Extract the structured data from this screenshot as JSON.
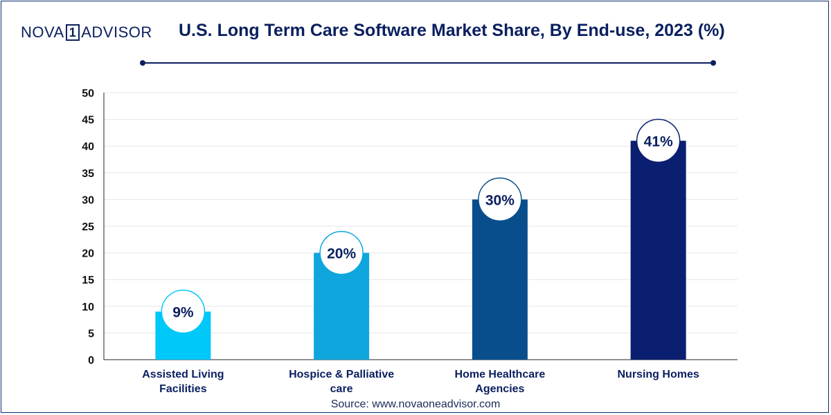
{
  "brand": {
    "left": "NOVA",
    "mid": "1",
    "right": "ADVISOR"
  },
  "source": "Source: www.novaoneadvisor.com",
  "chart_data": {
    "type": "bar",
    "title": "U.S. Long Term Care Software Market Share, By End-use, 2023 (%)",
    "xlabel": "",
    "ylabel": "",
    "ylim": [
      0,
      50
    ],
    "yticks": [
      0,
      5,
      10,
      15,
      20,
      25,
      30,
      35,
      40,
      45,
      50
    ],
    "grid": true,
    "categories": [
      [
        "Assisted Living",
        "Facilities"
      ],
      [
        "Hospice & Palliative",
        "care"
      ],
      [
        "Home Healthcare",
        "Agencies"
      ],
      [
        "Nursing Homes"
      ]
    ],
    "values": [
      9,
      20,
      30,
      41
    ],
    "value_labels": [
      "9%",
      "20%",
      "30%",
      "41%"
    ],
    "colors": [
      "#00c8f8",
      "#0fa6de",
      "#084e8c",
      "#0a1f70"
    ]
  }
}
